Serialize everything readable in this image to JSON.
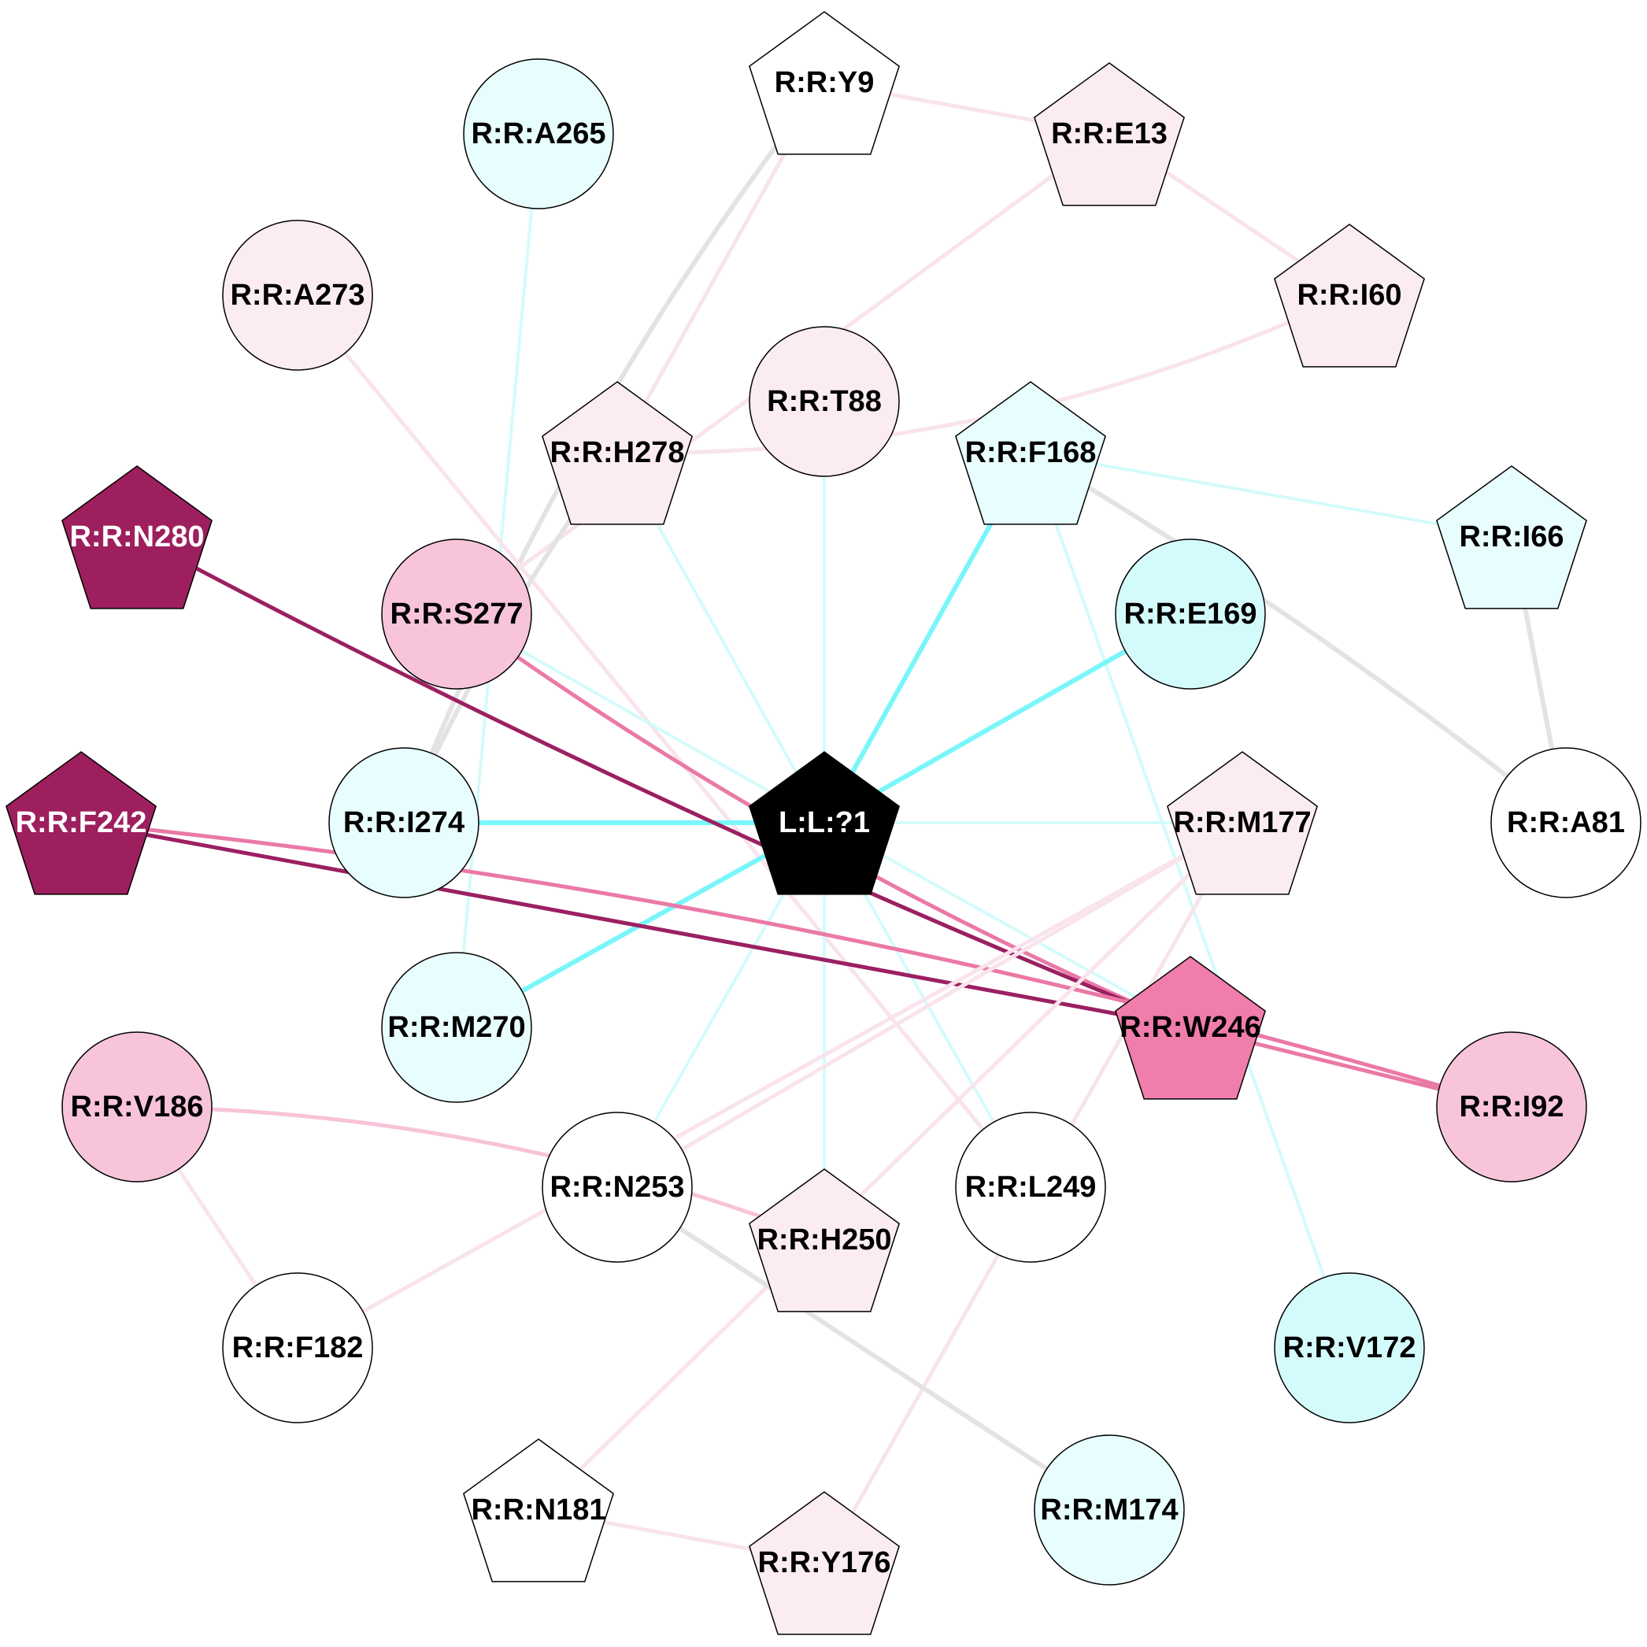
{
  "colors": {
    "gray": "#e3e3e3",
    "cyan_light": "#d4fbfc",
    "cyan": "#79f6f9",
    "pink_light": "#f9e3ec",
    "pink_mid": "#f7c3d9",
    "pink": "#ea79a6",
    "magenta": "#9b2061"
  },
  "nodes": [
    {
      "id": "L:L:?1",
      "label": "L:L:?1",
      "shape": "pentagon",
      "fill": "#000000",
      "text": "#ffffff"
    },
    {
      "id": "R:R:Y9",
      "label": "R:R:Y9",
      "shape": "pentagon",
      "fill": "#ffffff",
      "text": "#000000"
    },
    {
      "id": "R:R:E13",
      "label": "R:R:E13",
      "shape": "pentagon",
      "fill": "#fbecf2",
      "text": "#000000"
    },
    {
      "id": "R:R:A265",
      "label": "R:R:A265",
      "shape": "circle",
      "fill": "#e8fdfd",
      "text": "#000000"
    },
    {
      "id": "R:R:A273",
      "label": "R:R:A273",
      "shape": "circle",
      "fill": "#fbecf2",
      "text": "#000000"
    },
    {
      "id": "R:R:I60",
      "label": "R:R:I60",
      "shape": "pentagon",
      "fill": "#fbecf2",
      "text": "#000000"
    },
    {
      "id": "R:R:T88",
      "label": "R:R:T88",
      "shape": "circle",
      "fill": "#fbecf2",
      "text": "#000000"
    },
    {
      "id": "R:R:H278",
      "label": "R:R:H278",
      "shape": "pentagon",
      "fill": "#fbecf2",
      "text": "#000000"
    },
    {
      "id": "R:R:F168",
      "label": "R:R:F168",
      "shape": "pentagon",
      "fill": "#e8fdfd",
      "text": "#000000"
    },
    {
      "id": "R:R:I66",
      "label": "R:R:I66",
      "shape": "pentagon",
      "fill": "#e8fdfd",
      "text": "#000000"
    },
    {
      "id": "R:R:N280",
      "label": "R:R:N280",
      "shape": "pentagon",
      "fill": "#9e1f5e",
      "text": "#ffffff"
    },
    {
      "id": "R:R:S277",
      "label": "R:R:S277",
      "shape": "circle",
      "fill": "#f7c4da",
      "text": "#000000"
    },
    {
      "id": "R:R:E169",
      "label": "R:R:E169",
      "shape": "circle",
      "fill": "#d4fbfc",
      "text": "#000000"
    },
    {
      "id": "R:R:F242",
      "label": "R:R:F242",
      "shape": "pentagon",
      "fill": "#9e1f5e",
      "text": "#ffffff"
    },
    {
      "id": "R:R:I274",
      "label": "R:R:I274",
      "shape": "circle",
      "fill": "#e8fdfd",
      "text": "#000000"
    },
    {
      "id": "R:R:M177",
      "label": "R:R:M177",
      "shape": "pentagon",
      "fill": "#fbecf2",
      "text": "#000000"
    },
    {
      "id": "R:R:A81",
      "label": "R:R:A81",
      "shape": "circle",
      "fill": "#ffffff",
      "text": "#000000"
    },
    {
      "id": "R:R:M270",
      "label": "R:R:M270",
      "shape": "circle",
      "fill": "#e8fdfd",
      "text": "#000000"
    },
    {
      "id": "R:R:W246",
      "label": "R:R:W246",
      "shape": "pentagon",
      "fill": "#f07dab",
      "text": "#000000"
    },
    {
      "id": "R:R:V186",
      "label": "R:R:V186",
      "shape": "circle",
      "fill": "#f7c4da",
      "text": "#000000"
    },
    {
      "id": "R:R:I92",
      "label": "R:R:I92",
      "shape": "circle",
      "fill": "#f7c4da",
      "text": "#000000"
    },
    {
      "id": "R:R:N253",
      "label": "R:R:N253",
      "shape": "circle",
      "fill": "#ffffff",
      "text": "#000000"
    },
    {
      "id": "R:R:L249",
      "label": "R:R:L249",
      "shape": "circle",
      "fill": "#ffffff",
      "text": "#000000"
    },
    {
      "id": "R:R:H250",
      "label": "R:R:H250",
      "shape": "pentagon",
      "fill": "#fbecf2",
      "text": "#000000"
    },
    {
      "id": "R:R:F182",
      "label": "R:R:F182",
      "shape": "circle",
      "fill": "#ffffff",
      "text": "#000000"
    },
    {
      "id": "R:R:V172",
      "label": "R:R:V172",
      "shape": "circle",
      "fill": "#d4fbfc",
      "text": "#000000"
    },
    {
      "id": "R:R:N181",
      "label": "R:R:N181",
      "shape": "pentagon",
      "fill": "#ffffff",
      "text": "#000000"
    },
    {
      "id": "R:R:M174",
      "label": "R:R:M174",
      "shape": "circle",
      "fill": "#e8fdfd",
      "text": "#000000"
    },
    {
      "id": "R:R:Y176",
      "label": "R:R:Y176",
      "shape": "pentagon",
      "fill": "#fbecf2",
      "text": "#000000"
    }
  ],
  "edges": [
    {
      "source": "R:R:Y9",
      "target": "R:R:E13",
      "color": "pink_light"
    },
    {
      "source": "R:R:Y9",
      "target": "R:R:H278",
      "color": "pink_light"
    },
    {
      "source": "R:R:Y9",
      "target": "R:R:I274",
      "color": "gray"
    },
    {
      "source": "R:R:E13",
      "target": "R:R:I60",
      "color": "pink_light"
    },
    {
      "source": "R:R:E13",
      "target": "R:R:S277",
      "color": "pink_light"
    },
    {
      "source": "R:R:I60",
      "target": "R:R:H278",
      "color": "pink_light"
    },
    {
      "source": "R:R:A265",
      "target": "R:R:M270",
      "color": "cyan_light"
    },
    {
      "source": "R:R:A273",
      "target": "R:R:L249",
      "color": "pink_light"
    },
    {
      "source": "R:R:H278",
      "target": "R:R:I274",
      "color": "gray"
    },
    {
      "source": "R:R:H278",
      "target": "L:L:?1",
      "color": "cyan_light"
    },
    {
      "source": "R:R:T88",
      "target": "L:L:?1",
      "color": "cyan_light"
    },
    {
      "source": "R:R:F168",
      "target": "L:L:?1",
      "color": "cyan"
    },
    {
      "source": "R:R:F168",
      "target": "R:R:I66",
      "color": "cyan_light"
    },
    {
      "source": "R:R:F168",
      "target": "R:R:A81",
      "color": "gray"
    },
    {
      "source": "R:R:F168",
      "target": "R:R:V172",
      "color": "cyan_light"
    },
    {
      "source": "R:R:I66",
      "target": "R:R:A81",
      "color": "gray"
    },
    {
      "source": "R:R:E169",
      "target": "L:L:?1",
      "color": "cyan"
    },
    {
      "source": "R:R:I274",
      "target": "L:L:?1",
      "color": "cyan"
    },
    {
      "source": "L:L:?1",
      "target": "R:R:M177",
      "color": "cyan_light"
    },
    {
      "source": "R:R:M270",
      "target": "L:L:?1",
      "color": "cyan"
    },
    {
      "source": "L:L:?1",
      "target": "R:R:N253",
      "color": "cyan_light"
    },
    {
      "source": "L:L:?1",
      "target": "R:R:L249",
      "color": "cyan_light"
    },
    {
      "source": "L:L:?1",
      "target": "R:R:H250",
      "color": "cyan_light"
    },
    {
      "source": "L:L:?1",
      "target": "R:R:W246",
      "color": "cyan_light"
    },
    {
      "source": "R:R:S277",
      "target": "R:R:W246",
      "color": "pink"
    },
    {
      "source": "R:R:S277",
      "target": "L:L:?1",
      "color": "cyan_light"
    },
    {
      "source": "R:R:N280",
      "target": "R:R:W246",
      "color": "magenta"
    },
    {
      "source": "R:R:F242",
      "target": "R:R:W246",
      "color": "magenta"
    },
    {
      "source": "R:R:F242",
      "target": "R:R:I92",
      "color": "pink"
    },
    {
      "source": "R:R:W246",
      "target": "R:R:I92",
      "color": "pink"
    },
    {
      "source": "R:R:M177",
      "target": "R:R:N253",
      "color": "pink_light"
    },
    {
      "source": "R:R:M177",
      "target": "R:R:N181",
      "color": "pink_light"
    },
    {
      "source": "R:R:M177",
      "target": "R:R:Y176",
      "color": "pink_light"
    },
    {
      "source": "R:R:M177",
      "target": "R:R:F182",
      "color": "pink_light"
    },
    {
      "source": "R:R:V186",
      "target": "R:R:H250",
      "color": "pink_mid"
    },
    {
      "source": "R:R:V186",
      "target": "R:R:F182",
      "color": "pink_light"
    },
    {
      "source": "R:R:N253",
      "target": "R:R:M174",
      "color": "gray"
    },
    {
      "source": "R:R:N181",
      "target": "R:R:Y176",
      "color": "pink_light"
    }
  ]
}
